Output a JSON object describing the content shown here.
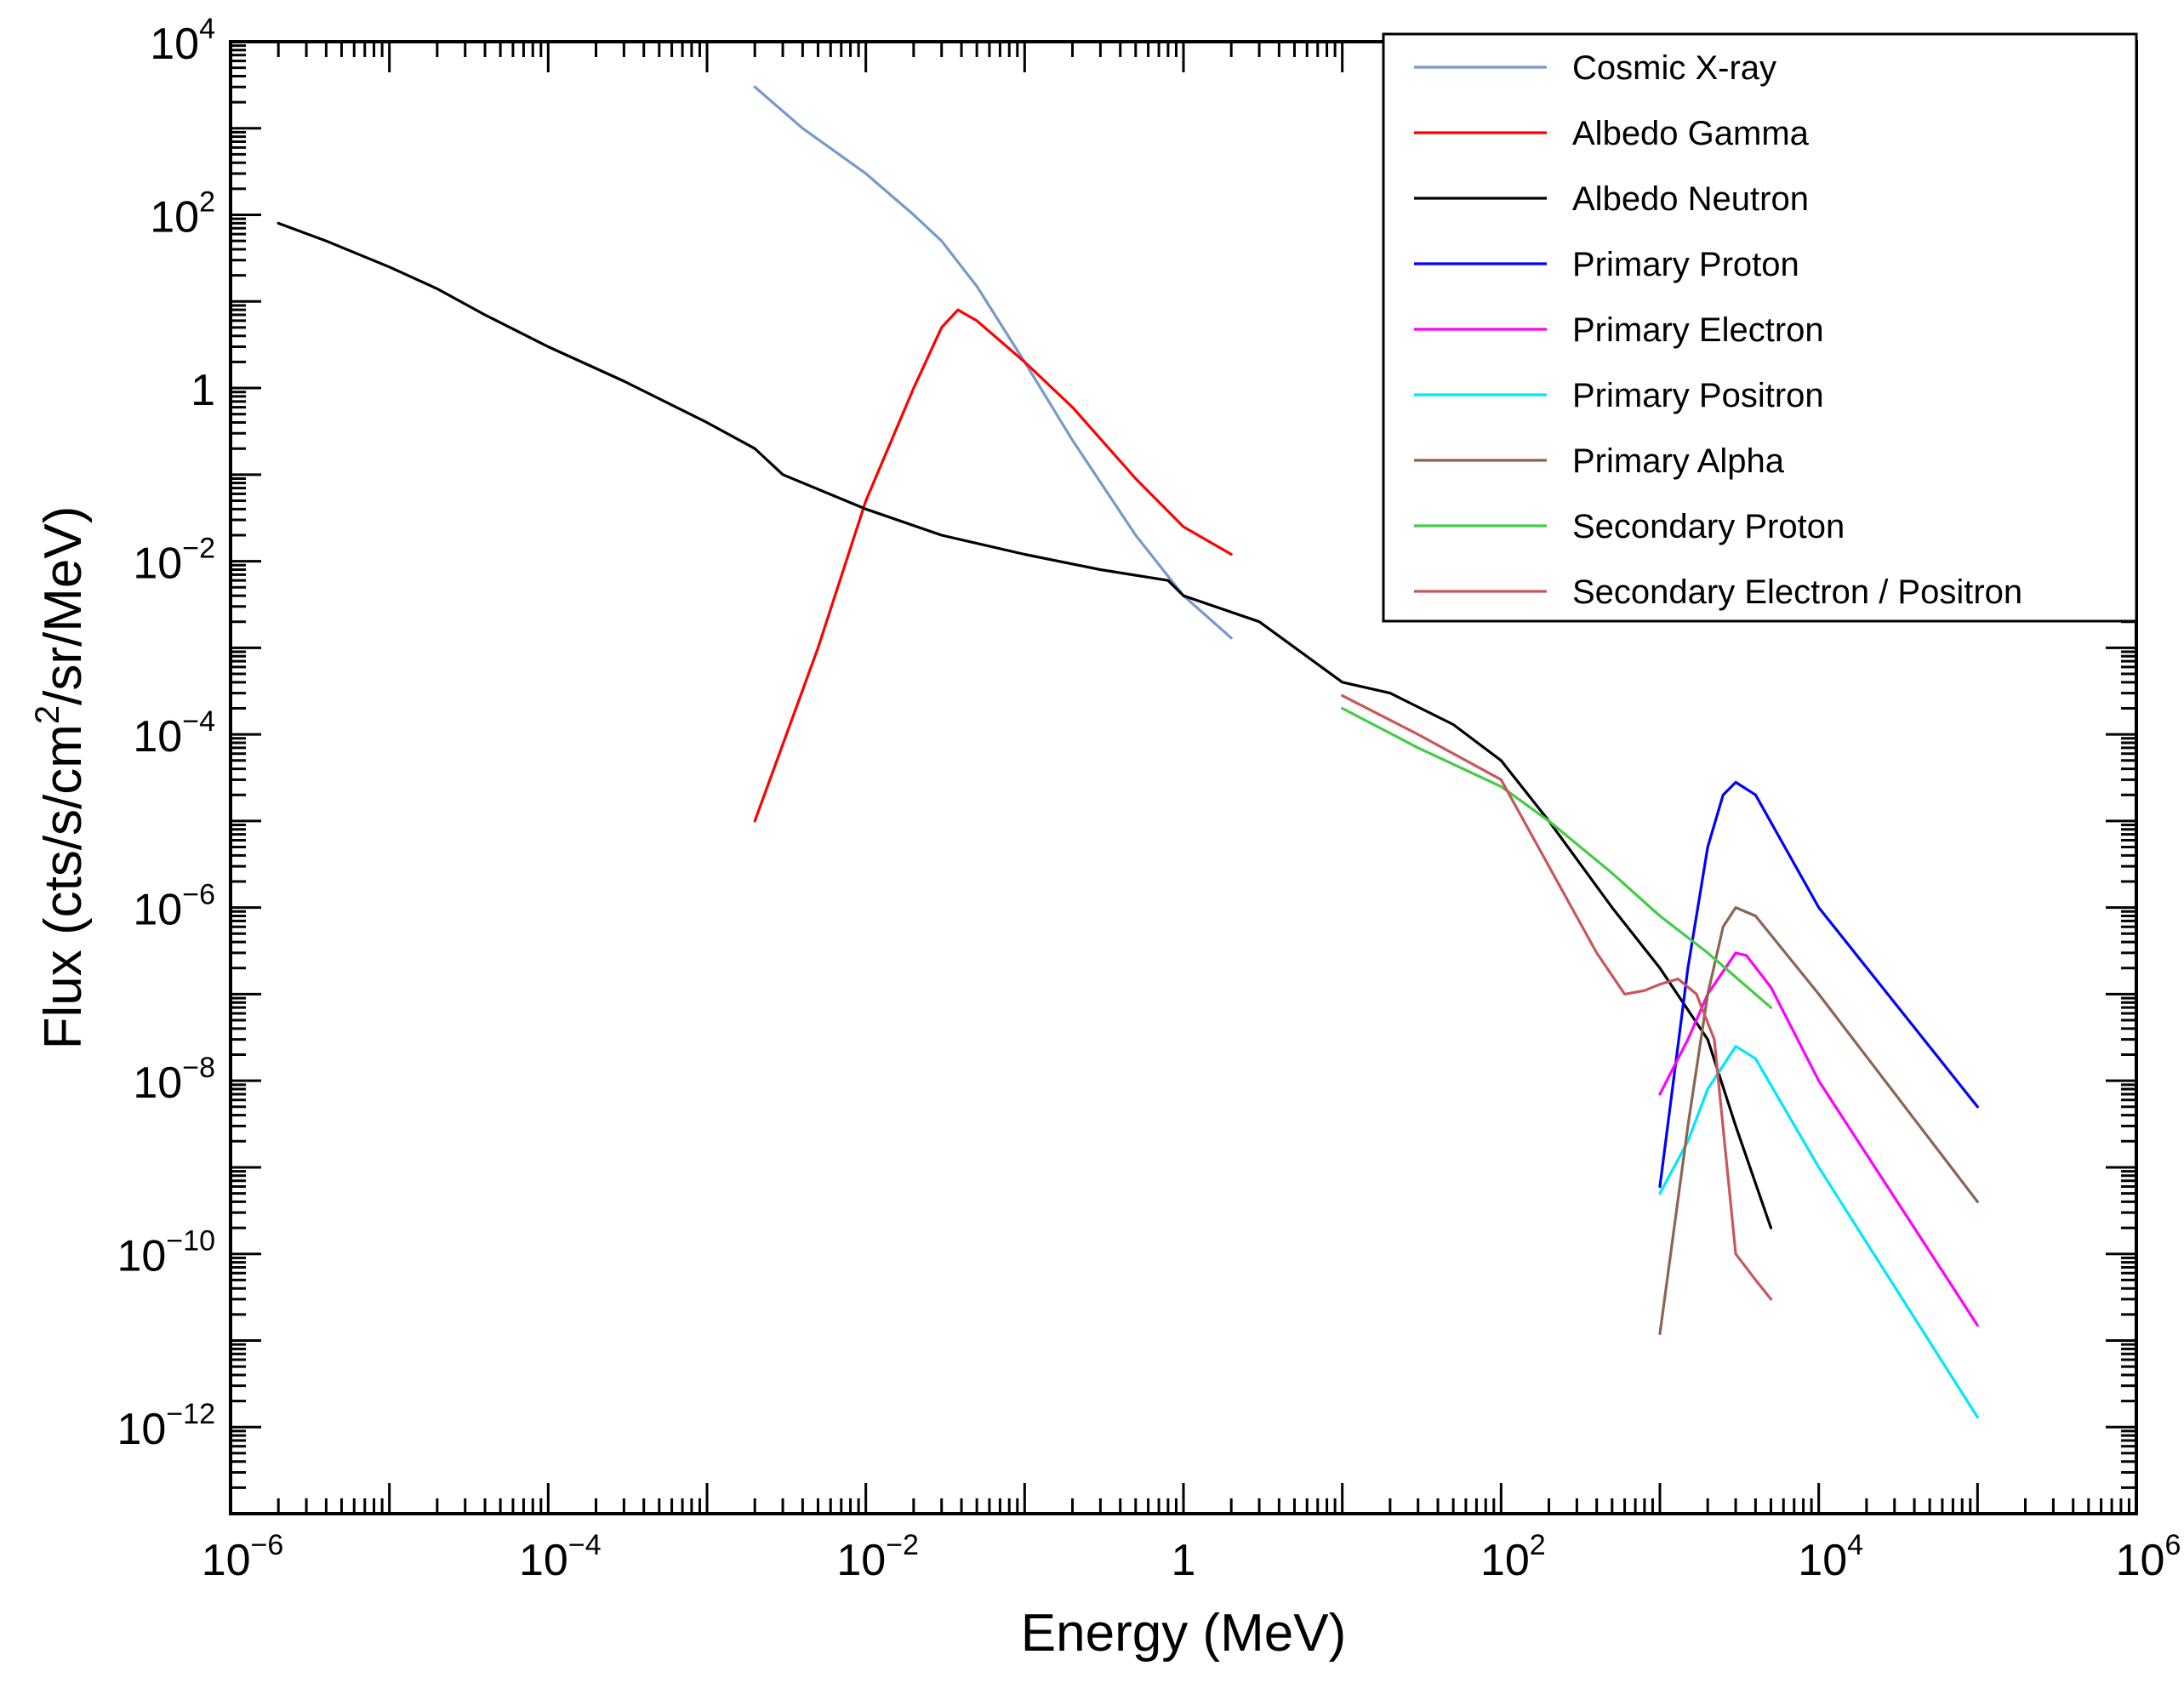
{
  "chart_data": {
    "type": "line",
    "title": "",
    "xlabel": "Energy (MeV)",
    "ylabel": "Flux (cts/s/cm²/sr/MeV)",
    "ylabel_parts": {
      "pre": "Flux (cts/s/cm",
      "sup": "2",
      "post": "/sr/MeV)"
    },
    "xscale": "log",
    "yscale": "log",
    "xlim": [
      1e-06,
      1000000.0
    ],
    "ylim": [
      1e-13,
      10000.0
    ],
    "x_ticks": [
      {
        "value": 1e-06,
        "base": "10",
        "exp": "−6"
      },
      {
        "value": 0.0001,
        "base": "10",
        "exp": "−4"
      },
      {
        "value": 0.01,
        "base": "10",
        "exp": "−2"
      },
      {
        "value": 1,
        "base": "1",
        "exp": ""
      },
      {
        "value": 100.0,
        "base": "10",
        "exp": "2"
      },
      {
        "value": 10000.0,
        "base": "10",
        "exp": "4"
      },
      {
        "value": 1000000.0,
        "base": "10",
        "exp": "6"
      }
    ],
    "y_ticks": [
      {
        "value": 10000.0,
        "base": "10",
        "exp": "4"
      },
      {
        "value": 100.0,
        "base": "10",
        "exp": "2"
      },
      {
        "value": 1,
        "base": "1",
        "exp": ""
      },
      {
        "value": 0.01,
        "base": "10",
        "exp": "−2"
      },
      {
        "value": 0.0001,
        "base": "10",
        "exp": "−4"
      },
      {
        "value": 1e-06,
        "base": "10",
        "exp": "−6"
      },
      {
        "value": 1e-08,
        "base": "10",
        "exp": "−8"
      },
      {
        "value": 1e-10,
        "base": "10",
        "exp": "−10"
      },
      {
        "value": 1e-12,
        "base": "10",
        "exp": "−12"
      }
    ],
    "legend_position": "top-right",
    "series": [
      {
        "name": "Cosmic X-ray",
        "color": "#7799cc",
        "points": [
          [
            0.002,
            3000
          ],
          [
            0.004,
            1000
          ],
          [
            0.01,
            300
          ],
          [
            0.02,
            100
          ],
          [
            0.03,
            50
          ],
          [
            0.05,
            15
          ],
          [
            0.1,
            2
          ],
          [
            0.2,
            0.25
          ],
          [
            0.5,
            0.02
          ],
          [
            1,
            0.004
          ],
          [
            2,
            0.0013
          ]
        ]
      },
      {
        "name": "Albedo Gamma",
        "color": "#ff0000",
        "points": [
          [
            0.002,
            1e-05
          ],
          [
            0.005,
            0.001
          ],
          [
            0.01,
            0.05
          ],
          [
            0.02,
            1
          ],
          [
            0.03,
            5
          ],
          [
            0.038,
            8
          ],
          [
            0.05,
            6
          ],
          [
            0.1,
            2
          ],
          [
            0.2,
            0.6
          ],
          [
            0.5,
            0.09
          ],
          [
            1,
            0.025
          ],
          [
            2,
            0.012
          ]
        ]
      },
      {
        "name": "Albedo Neutron",
        "color": "#000000",
        "points": [
          [
            2e-06,
            80
          ],
          [
            4e-06,
            50
          ],
          [
            1e-05,
            25
          ],
          [
            2e-05,
            14
          ],
          [
            4e-05,
            7
          ],
          [
            0.0001,
            3
          ],
          [
            0.0003,
            1.2
          ],
          [
            0.001,
            0.4
          ],
          [
            0.002,
            0.2
          ],
          [
            0.003,
            0.1
          ],
          [
            0.01,
            0.04
          ],
          [
            0.03,
            0.02
          ],
          [
            0.1,
            0.012
          ],
          [
            0.3,
            0.008
          ],
          [
            0.8,
            0.006
          ],
          [
            1,
            0.004
          ],
          [
            3,
            0.002
          ],
          [
            10,
            0.0004
          ],
          [
            20,
            0.0003
          ],
          [
            50,
            0.00013
          ],
          [
            100,
            5e-05
          ],
          [
            200,
            1e-05
          ],
          [
            500,
            1e-06
          ],
          [
            1000,
            2e-07
          ],
          [
            2000,
            3e-08
          ],
          [
            3000,
            3e-09
          ],
          [
            5000,
            2e-10
          ]
        ]
      },
      {
        "name": "Primary Proton",
        "color": "#0000ff",
        "points": [
          [
            1000,
            6e-10
          ],
          [
            1500,
            2e-07
          ],
          [
            2000,
            5e-06
          ],
          [
            2500,
            2e-05
          ],
          [
            3000,
            2.8e-05
          ],
          [
            4000,
            2e-05
          ],
          [
            10000,
            1e-06
          ],
          [
            100000,
            5e-09
          ]
        ]
      },
      {
        "name": "Primary Electron",
        "color": "#ff00ff",
        "points": [
          [
            1000,
            7e-09
          ],
          [
            1500,
            3e-08
          ],
          [
            2000,
            1e-07
          ],
          [
            3000,
            3e-07
          ],
          [
            3500,
            2.8e-07
          ],
          [
            5000,
            1.2e-07
          ],
          [
            10000,
            1e-08
          ],
          [
            100000,
            1.5e-11
          ]
        ]
      },
      {
        "name": "Primary Positron",
        "color": "#00e6ff",
        "points": [
          [
            1000,
            5e-10
          ],
          [
            1500,
            2e-09
          ],
          [
            2000,
            8e-09
          ],
          [
            3000,
            2.5e-08
          ],
          [
            4000,
            1.8e-08
          ],
          [
            10000,
            1e-09
          ],
          [
            100000,
            1.3e-12
          ]
        ]
      },
      {
        "name": "Primary Alpha",
        "color": "#8b6552",
        "points": [
          [
            1000,
            1.2e-11
          ],
          [
            1500,
            3e-09
          ],
          [
            2000,
            1e-07
          ],
          [
            2500,
            6e-07
          ],
          [
            3000,
            1e-06
          ],
          [
            4000,
            8e-07
          ],
          [
            10000,
            1e-07
          ],
          [
            100000,
            4e-10
          ]
        ]
      },
      {
        "name": "Secondary Proton",
        "color": "#44cc44",
        "points": [
          [
            10,
            0.0002
          ],
          [
            30,
            7e-05
          ],
          [
            100,
            2.5e-05
          ],
          [
            200,
            1e-05
          ],
          [
            500,
            2.5e-06
          ],
          [
            1000,
            8e-07
          ],
          [
            2000,
            3e-07
          ],
          [
            5000,
            7e-08
          ]
        ]
      },
      {
        "name": "Secondary Electron / Positron",
        "color": "#c8575a",
        "points": [
          [
            10,
            0.00028
          ],
          [
            30,
            0.0001
          ],
          [
            100,
            3e-05
          ],
          [
            200,
            3e-06
          ],
          [
            400,
            3e-07
          ],
          [
            600,
            1e-07
          ],
          [
            800,
            1.1e-07
          ],
          [
            1000,
            1.3e-07
          ],
          [
            1300,
            1.5e-07
          ],
          [
            1700,
            1e-07
          ],
          [
            2200,
            3e-08
          ],
          [
            3000,
            1e-10
          ],
          [
            4000,
            5e-11
          ],
          [
            5000,
            3e-11
          ]
        ]
      }
    ]
  }
}
